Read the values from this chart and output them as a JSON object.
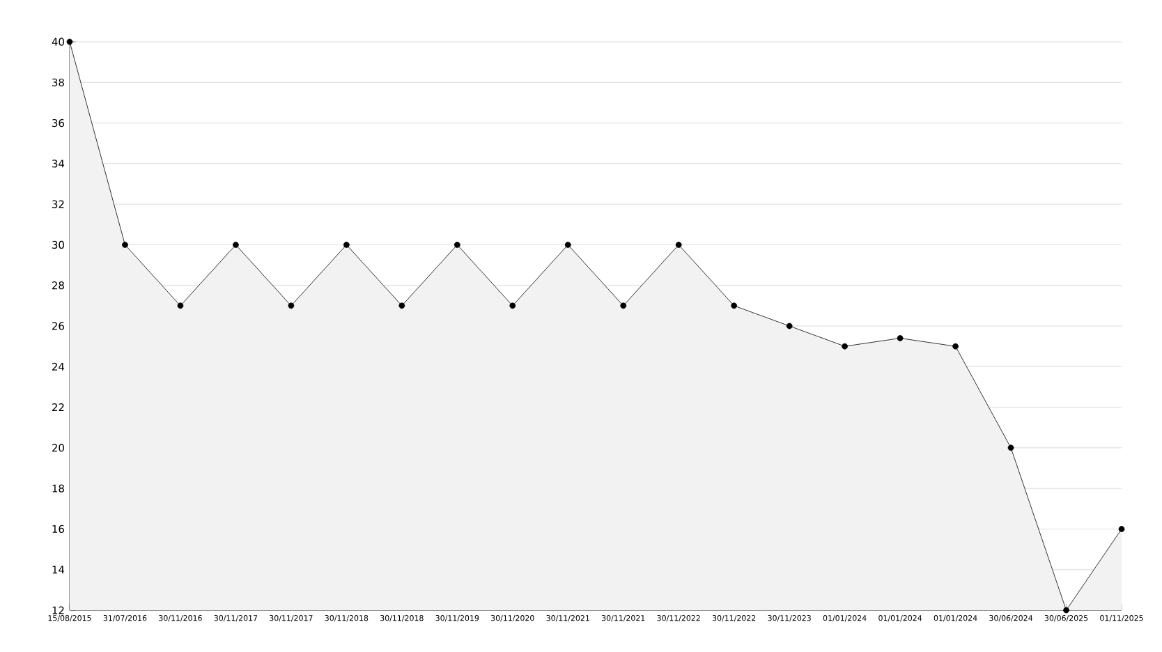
{
  "chart_data": {
    "type": "area",
    "categories": [
      "15/08/2015",
      "31/07/2016",
      "30/11/2016",
      "30/11/2017",
      "30/11/2017",
      "30/11/2018",
      "30/11/2018",
      "30/11/2019",
      "30/11/2020",
      "30/11/2021",
      "30/11/2021",
      "30/11/2022",
      "30/11/2022",
      "30/11/2023",
      "01/01/2024",
      "01/01/2024",
      "01/01/2024",
      "30/06/2024",
      "30/06/2025",
      "01/11/2025"
    ],
    "values": [
      40,
      30,
      27,
      30,
      27,
      30,
      27,
      30,
      27,
      30,
      27,
      30,
      27,
      26,
      25,
      25.4,
      25,
      20,
      12,
      16
    ],
    "color": "#000000",
    "ylim": [
      12,
      40
    ],
    "yticks": [
      12,
      14,
      16,
      18,
      20,
      22,
      24,
      26,
      28,
      30,
      32,
      34,
      36,
      38,
      40
    ],
    "grid": "y",
    "marker": "circle"
  }
}
